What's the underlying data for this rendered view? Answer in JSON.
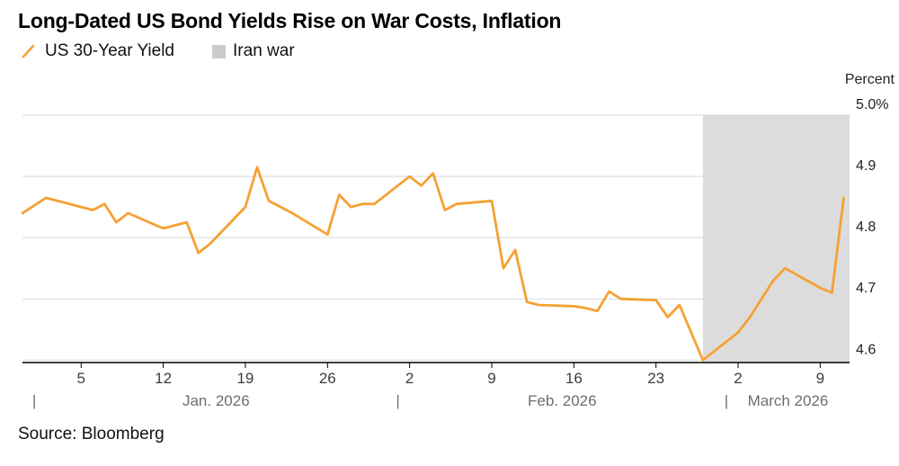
{
  "title": "Long-Dated US Bond Yields Rise on War Costs, Inflation",
  "source": "Source: Bloomberg",
  "colors": {
    "line": "#F5A133",
    "band": "#DCDCDC",
    "band_legend": "#CBCBCB",
    "grid": "#D9D9D9",
    "axis": "#000000",
    "tick_text": "#3C3C3C",
    "month_text": "#6E6E6E",
    "ylabel_text": "#222222"
  },
  "chart_data": {
    "type": "line",
    "title": "Long-Dated US Bond Yields Rise on War Costs, Inflation",
    "ylabel": "Percent",
    "ylim": [
      4.596,
      5.0
    ],
    "grid": true,
    "legend_position": "top-left",
    "y_ticks": [
      {
        "value": 4.6,
        "label": "4.6"
      },
      {
        "value": 4.7,
        "label": "4.7"
      },
      {
        "value": 4.8,
        "label": "4.8"
      },
      {
        "value": 4.9,
        "label": "4.9"
      },
      {
        "value": 5.0,
        "label": "5.0%"
      }
    ],
    "x_range": {
      "start": "2025-12-31",
      "end": "2026-03-11",
      "right_pad_days": 0.5
    },
    "x_ticks": [
      {
        "date": "2026-01-05",
        "label": "5"
      },
      {
        "date": "2026-01-12",
        "label": "12"
      },
      {
        "date": "2026-01-19",
        "label": "19"
      },
      {
        "date": "2026-01-26",
        "label": "26"
      },
      {
        "date": "2026-02-02",
        "label": "2"
      },
      {
        "date": "2026-02-09",
        "label": "9"
      },
      {
        "date": "2026-02-16",
        "label": "16"
      },
      {
        "date": "2026-02-23",
        "label": "23"
      },
      {
        "date": "2026-03-02",
        "label": "2"
      },
      {
        "date": "2026-03-09",
        "label": "9"
      }
    ],
    "month_markers": [
      {
        "date": "2026-01-01",
        "label": "Jan. 2026"
      },
      {
        "date": "2026-02-01",
        "label": "Feb. 2026"
      },
      {
        "date": "2026-03-01",
        "label": "March 2026"
      }
    ],
    "series": [
      {
        "name": "US 30-Year Yield",
        "color": "#F5A133",
        "points": [
          [
            "2025-12-31",
            4.84
          ],
          [
            "2026-01-02",
            4.865
          ],
          [
            "2026-01-05",
            4.85
          ],
          [
            "2026-01-06",
            4.845
          ],
          [
            "2026-01-07",
            4.855
          ],
          [
            "2026-01-08",
            4.825
          ],
          [
            "2026-01-09",
            4.84
          ],
          [
            "2026-01-12",
            4.815
          ],
          [
            "2026-01-13",
            4.82
          ],
          [
            "2026-01-14",
            4.825
          ],
          [
            "2026-01-15",
            4.775
          ],
          [
            "2026-01-16",
            4.79
          ],
          [
            "2026-01-19",
            4.85
          ],
          [
            "2026-01-20",
            4.915
          ],
          [
            "2026-01-21",
            4.86
          ],
          [
            "2026-01-22",
            4.85
          ],
          [
            "2026-01-23",
            4.84
          ],
          [
            "2026-01-26",
            4.805
          ],
          [
            "2026-01-27",
            4.87
          ],
          [
            "2026-01-28",
            4.85
          ],
          [
            "2026-01-29",
            4.855
          ],
          [
            "2026-01-30",
            4.855
          ],
          [
            "2026-02-02",
            4.9
          ],
          [
            "2026-02-03",
            4.885
          ],
          [
            "2026-02-04",
            4.905
          ],
          [
            "2026-02-05",
            4.845
          ],
          [
            "2026-02-06",
            4.855
          ],
          [
            "2026-02-09",
            4.86
          ],
          [
            "2026-02-10",
            4.75
          ],
          [
            "2026-02-11",
            4.78
          ],
          [
            "2026-02-12",
            4.695
          ],
          [
            "2026-02-13",
            4.69
          ],
          [
            "2026-02-16",
            4.688
          ],
          [
            "2026-02-17",
            4.685
          ],
          [
            "2026-02-18",
            4.68
          ],
          [
            "2026-02-19",
            4.712
          ],
          [
            "2026-02-20",
            4.7
          ],
          [
            "2026-02-23",
            4.698
          ],
          [
            "2026-02-24",
            4.67
          ],
          [
            "2026-02-25",
            4.69
          ],
          [
            "2026-02-26",
            4.645
          ],
          [
            "2026-02-27",
            4.6
          ],
          [
            "2026-03-02",
            4.645
          ],
          [
            "2026-03-03",
            4.67
          ],
          [
            "2026-03-04",
            4.7
          ],
          [
            "2026-03-05",
            4.73
          ],
          [
            "2026-03-06",
            4.75
          ],
          [
            "2026-03-09",
            4.718
          ],
          [
            "2026-03-10",
            4.71
          ],
          [
            "2026-03-11",
            4.865
          ]
        ]
      }
    ],
    "shaded_region": {
      "label": "Iran war",
      "start": "2026-02-27",
      "end": null,
      "color": "#DCDCDC"
    }
  }
}
